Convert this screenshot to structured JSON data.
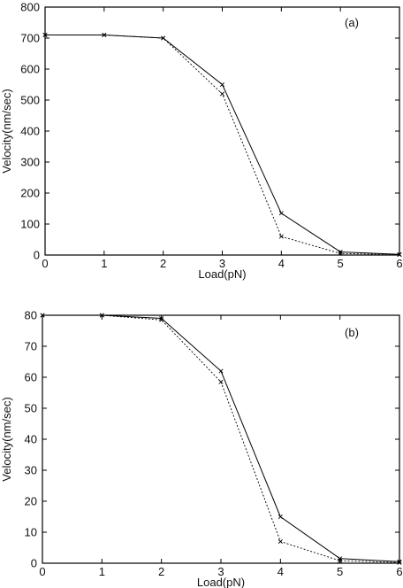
{
  "chart_data": [
    {
      "type": "line",
      "panel_label": "(a)",
      "xlabel": "Load(pN)",
      "ylabel": "Velocity(nm/sec)",
      "xlim": [
        0,
        6
      ],
      "ylim": [
        0,
        800
      ],
      "xticks": [
        0,
        1,
        2,
        3,
        4,
        5,
        6
      ],
      "yticks": [
        0,
        100,
        200,
        300,
        400,
        500,
        600,
        700,
        800
      ],
      "grid": false,
      "x": [
        0,
        1,
        2,
        3,
        4,
        5,
        6
      ],
      "series": [
        {
          "style": "solid",
          "marker": "x",
          "values": [
            710,
            710,
            700,
            550,
            135,
            10,
            2
          ]
        },
        {
          "style": "dotted",
          "marker": "x",
          "values": [
            710,
            710,
            700,
            520,
            60,
            5,
            1
          ]
        }
      ]
    },
    {
      "type": "line",
      "panel_label": "(b)",
      "xlabel": "Load(pN)",
      "ylabel": "Velocity(nm/sec)",
      "xlim": [
        0,
        6
      ],
      "ylim": [
        0,
        80
      ],
      "xticks": [
        0,
        1,
        2,
        3,
        4,
        5,
        6
      ],
      "yticks": [
        0,
        10,
        20,
        30,
        40,
        50,
        60,
        70,
        80
      ],
      "grid": false,
      "x": [
        0,
        1,
        2,
        3,
        4,
        5,
        6
      ],
      "series": [
        {
          "style": "solid",
          "marker": "x",
          "values": [
            80,
            80,
            79,
            62,
            15,
            1.5,
            0.5
          ]
        },
        {
          "style": "dotted",
          "marker": "x",
          "values": [
            80,
            80,
            78.5,
            58.5,
            7,
            0.8,
            0.2
          ]
        }
      ]
    }
  ]
}
